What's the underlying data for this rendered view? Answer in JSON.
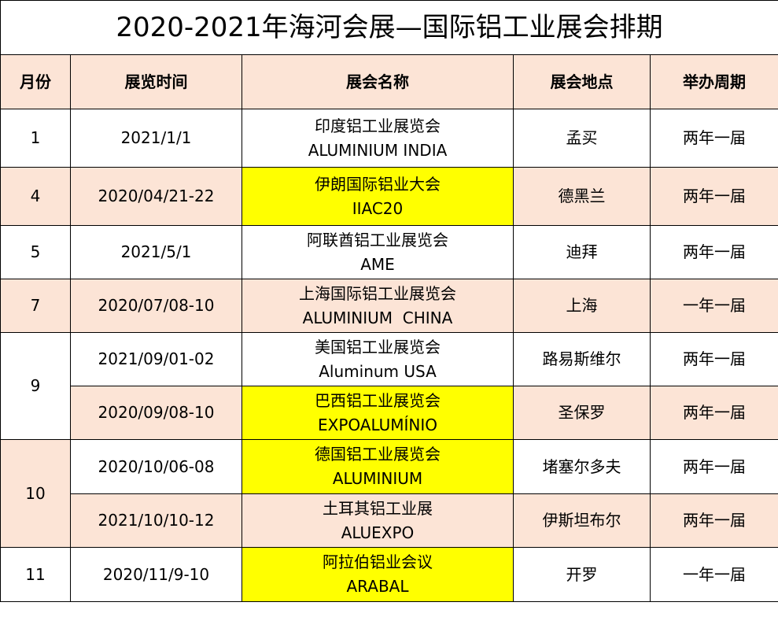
{
  "title": "2020-2021年海河会展—国际铝工业展会排期",
  "headers": [
    "月份",
    "展览时间",
    "展会名称",
    "展会地点",
    "举办周期"
  ],
  "colors": {
    "header_bg": "#fce4d6",
    "alt_row_bg": "#fce4d6",
    "highlight": "#ffff00"
  },
  "rows": [
    {
      "month": "1",
      "date": "2021/1/1",
      "name_cn": "印度铝工业展览会",
      "name_en": "ALUMINIUM INDIA",
      "location": "孟买",
      "cycle": "两年一届",
      "highlight": false
    },
    {
      "month": "4",
      "date": "2020/04/21-22",
      "name_cn": "伊朗国际铝业大会",
      "name_en": "IIAC20",
      "location": "德黑兰",
      "cycle": "两年一届",
      "highlight": true
    },
    {
      "month": "5",
      "date": "2021/5/1",
      "name_cn": "阿联酋铝工业展览会",
      "name_en": "AME",
      "location": "迪拜",
      "cycle": "两年一届",
      "highlight": false
    },
    {
      "month": "7",
      "date": "2020/07/08-10",
      "name_cn": "上海国际铝工业展览会",
      "name_en": "ALUMINIUM  CHINA",
      "location": "上海",
      "cycle": "一年一届",
      "highlight": false
    },
    {
      "month": "9",
      "date": "2021/09/01-02",
      "name_cn": "美国铝工业展览会",
      "name_en": "Aluminum USA",
      "location": "路易斯维尔",
      "cycle": "两年一届",
      "highlight": false
    },
    {
      "month": "9",
      "date": "2020/09/08-10",
      "name_cn": "巴西铝工业展览会",
      "name_en": "EXPOALUMÍNIO",
      "location": "圣保罗",
      "cycle": "两年一届",
      "highlight": true
    },
    {
      "month": "10",
      "date": "2020/10/06-08",
      "name_cn": "德国铝工业展览会",
      "name_en": "ALUMINIUM",
      "location": "堵塞尔多夫",
      "cycle": "两年一届",
      "highlight": true
    },
    {
      "month": "10",
      "date": "2021/10/10-12",
      "name_cn": "土耳其铝工业展",
      "name_en": "ALUEXPO",
      "location": "伊斯坦布尔",
      "cycle": "两年一届",
      "highlight": false
    },
    {
      "month": "11",
      "date": "2020/11/9-10",
      "name_cn": "阿拉伯铝业会议",
      "name_en": "ARABAL",
      "location": "开罗",
      "cycle": "一年一届",
      "highlight": true
    }
  ]
}
